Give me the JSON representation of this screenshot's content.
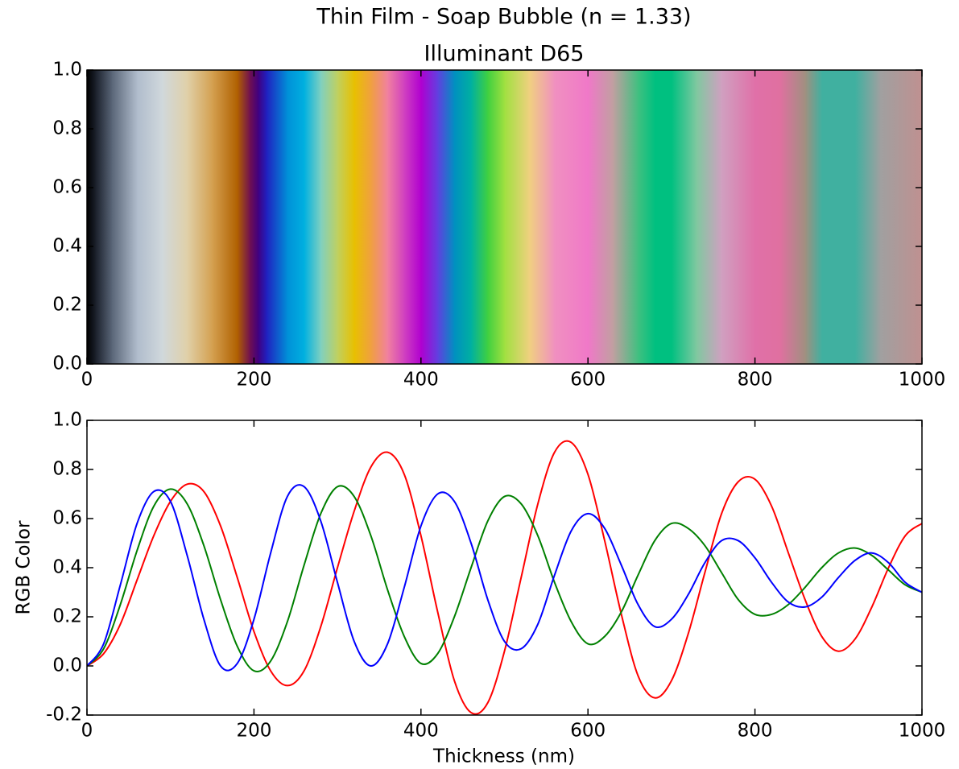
{
  "chart_data": [
    {
      "type": "strip",
      "title": "Thin Film - Soap Bubble (n = 1.33)",
      "subtitle": "Illuminant D65",
      "xlim": [
        0,
        1000
      ],
      "xticks": [
        0,
        200,
        400,
        600,
        800,
        1000
      ],
      "ylim": [
        0,
        1
      ],
      "yticks": [
        {
          "value": 0,
          "label": "0.0"
        },
        {
          "value": 0.2,
          "label": "0.2"
        },
        {
          "value": 0.4,
          "label": "0.4"
        },
        {
          "value": 0.6,
          "label": "0.6"
        },
        {
          "value": 0.8,
          "label": "0.8"
        },
        {
          "value": 1,
          "label": "1.0"
        }
      ],
      "x": [
        0,
        10,
        30,
        60,
        90,
        120,
        150,
        180,
        195,
        205,
        215,
        240,
        260,
        280,
        300,
        320,
        340,
        360,
        380,
        400,
        420,
        440,
        460,
        480,
        500,
        530,
        560,
        600,
        630,
        660,
        680,
        700,
        730,
        760,
        800,
        830,
        860,
        880,
        920,
        950,
        1000
      ],
      "colors": [
        "#000000",
        "#1a1f2a",
        "#5a6678",
        "#b0bccc",
        "#d0d8dc",
        "#e0d0a8",
        "#d4a050",
        "#b06000",
        "#701050",
        "#400080",
        "#2020c0",
        "#0090d8",
        "#00b0e0",
        "#80d0c0",
        "#c0d060",
        "#e8c000",
        "#f0a040",
        "#f080a0",
        "#d040c0",
        "#b000d0",
        "#6040e0",
        "#0090c0",
        "#00b0a0",
        "#40d040",
        "#a0e040",
        "#f0d080",
        "#f090c0",
        "#f078c8",
        "#c0a0a0",
        "#40c080",
        "#00c080",
        "#00c080",
        "#80c8a0",
        "#d0a0c0",
        "#e070a8",
        "#e070a0",
        "#a09080",
        "#40b0a0",
        "#40b0a0",
        "#a0a0a0",
        "#c09090"
      ]
    },
    {
      "type": "line",
      "x_label": "Thickness (nm)",
      "y_label": "RGB Color",
      "xlim": [
        0,
        1000
      ],
      "xticks": [
        0,
        200,
        400,
        600,
        800,
        1000
      ],
      "ylim": [
        -0.2,
        1
      ],
      "yticks": [
        {
          "value": -0.2,
          "label": "-0.2"
        },
        {
          "value": 0,
          "label": "0.0"
        },
        {
          "value": 0.2,
          "label": "0.2"
        },
        {
          "value": 0.4,
          "label": "0.4"
        },
        {
          "value": 0.6,
          "label": "0.6"
        },
        {
          "value": 0.8,
          "label": "0.8"
        },
        {
          "value": 1,
          "label": "1.0"
        }
      ],
      "x": [
        0,
        20,
        40,
        60,
        80,
        100,
        120,
        140,
        160,
        180,
        200,
        220,
        240,
        260,
        280,
        300,
        320,
        340,
        360,
        380,
        400,
        420,
        440,
        460,
        480,
        500,
        520,
        540,
        560,
        580,
        600,
        620,
        640,
        660,
        680,
        700,
        720,
        740,
        760,
        780,
        800,
        820,
        840,
        860,
        880,
        900,
        920,
        940,
        960,
        980,
        1000
      ],
      "series": [
        {
          "color": "#ff0000",
          "values": [
            0,
            0.05,
            0.17,
            0.35,
            0.53,
            0.67,
            0.74,
            0.71,
            0.57,
            0.36,
            0.14,
            -0.02,
            -0.08,
            -0.02,
            0.16,
            0.4,
            0.63,
            0.81,
            0.87,
            0.78,
            0.53,
            0.22,
            -0.06,
            -0.19,
            -0.15,
            0.06,
            0.36,
            0.66,
            0.87,
            0.91,
            0.78,
            0.51,
            0.21,
            -0.04,
            -0.13,
            -0.06,
            0.13,
            0.38,
            0.62,
            0.75,
            0.76,
            0.65,
            0.46,
            0.27,
            0.12,
            0.06,
            0.11,
            0.24,
            0.4,
            0.53,
            0.58
          ]
        },
        {
          "color": "#008000",
          "values": [
            0,
            0.07,
            0.25,
            0.47,
            0.65,
            0.72,
            0.66,
            0.49,
            0.27,
            0.08,
            -0.02,
            0.02,
            0.18,
            0.41,
            0.62,
            0.73,
            0.69,
            0.53,
            0.31,
            0.12,
            0.01,
            0.05,
            0.2,
            0.4,
            0.59,
            0.69,
            0.66,
            0.53,
            0.34,
            0.18,
            0.09,
            0.12,
            0.22,
            0.37,
            0.51,
            0.58,
            0.56,
            0.49,
            0.38,
            0.27,
            0.21,
            0.21,
            0.25,
            0.32,
            0.4,
            0.46,
            0.48,
            0.45,
            0.39,
            0.33,
            0.3
          ]
        },
        {
          "color": "#0000ff",
          "values": [
            0,
            0.09,
            0.33,
            0.58,
            0.71,
            0.67,
            0.45,
            0.19,
            0,
            0.01,
            0.19,
            0.46,
            0.69,
            0.73,
            0.59,
            0.34,
            0.1,
            0,
            0.09,
            0.32,
            0.57,
            0.7,
            0.67,
            0.5,
            0.27,
            0.1,
            0.07,
            0.17,
            0.37,
            0.55,
            0.62,
            0.56,
            0.41,
            0.25,
            0.16,
            0.19,
            0.29,
            0.42,
            0.51,
            0.51,
            0.44,
            0.34,
            0.26,
            0.24,
            0.28,
            0.36,
            0.43,
            0.46,
            0.42,
            0.34,
            0.3
          ]
        }
      ]
    }
  ]
}
